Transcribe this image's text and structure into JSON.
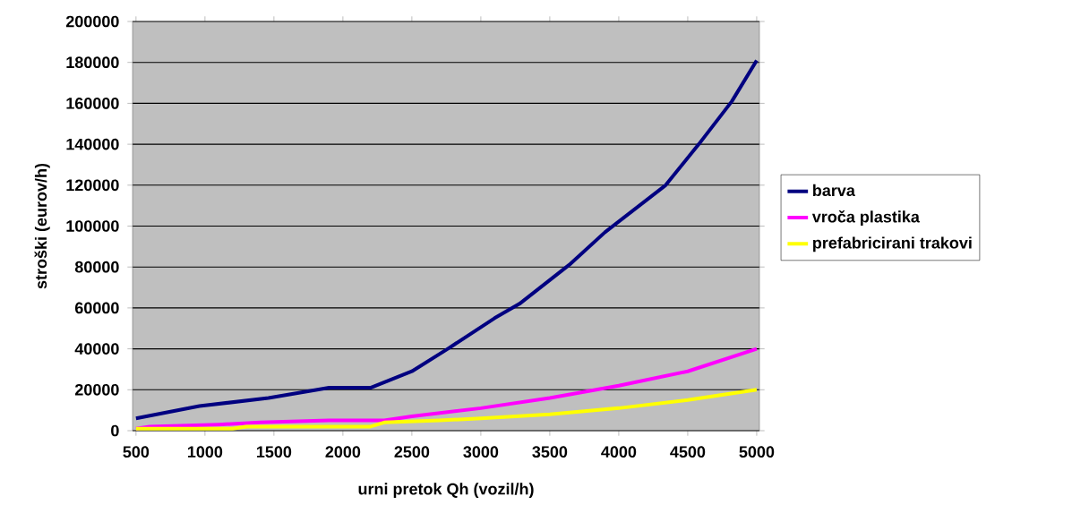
{
  "chart_data": {
    "type": "line",
    "xlabel": "urni pretok Qh (vozil/h)",
    "ylabel": "stroški (eurov/h)",
    "xlim": [
      475,
      5020
    ],
    "ylim": [
      0,
      200000
    ],
    "xticks": [
      500,
      1000,
      1500,
      2000,
      2500,
      3000,
      3500,
      4000,
      4500,
      5000
    ],
    "yticks": [
      0,
      20000,
      40000,
      60000,
      80000,
      100000,
      120000,
      140000,
      160000,
      180000,
      200000
    ],
    "grid": "y",
    "legend": "right",
    "marker": "none",
    "line_style": "solid",
    "series": [
      {
        "name": "barva",
        "color": "#000080",
        "x": [
          500,
          960,
          1460,
          1900,
          2200,
          2350,
          2500,
          2760,
          3100,
          3280,
          3640,
          3900,
          4340,
          4580,
          4820,
          5000
        ],
        "values": [
          6000,
          12000,
          16000,
          21000,
          21000,
          25000,
          29000,
          40000,
          55000,
          62000,
          81000,
          97000,
          120000,
          140000,
          161000,
          181000
        ]
      },
      {
        "name": "vroča plastika",
        "color": "#ff00ff",
        "x": [
          500,
          600,
          1100,
          1400,
          1900,
          2300,
          2500,
          3000,
          3500,
          4000,
          4500,
          5000
        ],
        "values": [
          1000,
          2000,
          3000,
          4000,
          5000,
          5000,
          7000,
          11000,
          16000,
          22000,
          29000,
          40000
        ]
      },
      {
        "name": "prefabricirani trakovi",
        "color": "#ffff00",
        "x": [
          500,
          1200,
          1300,
          2200,
          2300,
          2700,
          3000,
          3500,
          4000,
          4500,
          5000
        ],
        "values": [
          1000,
          1000,
          2000,
          2000,
          4000,
          5000,
          6000,
          8000,
          11000,
          15000,
          20000
        ]
      }
    ]
  }
}
